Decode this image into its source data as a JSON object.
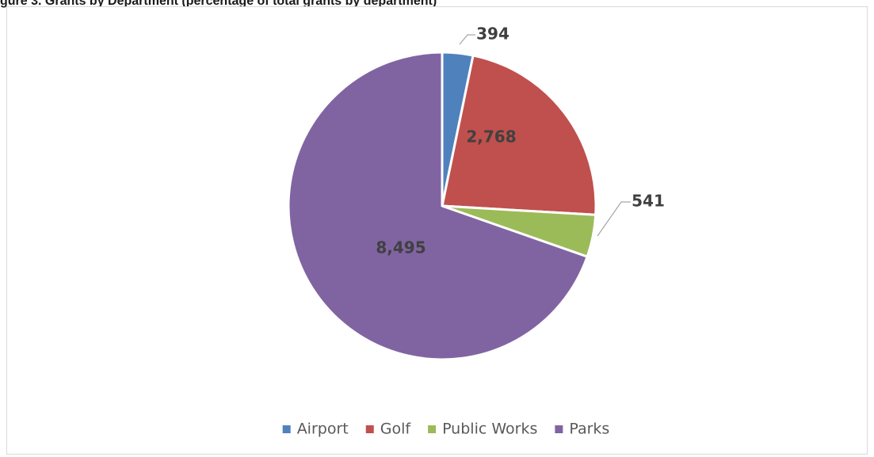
{
  "header": {
    "title_visible_fragment": "gure 3. Grants by Department (percentage of total grants by department)"
  },
  "chart_data": {
    "type": "pie",
    "title": "",
    "categories": [
      "Airport",
      "Golf",
      "Public Works",
      "Parks"
    ],
    "values": [
      394,
      2768,
      541,
      8495
    ],
    "value_labels": [
      "394",
      "2,768",
      "541",
      "8,495"
    ],
    "colors": {
      "Airport": "#4f81bd",
      "Golf": "#c0504d",
      "Public Works": "#9bbb59",
      "Parks": "#8064a2"
    },
    "start_angle": "12 o'clock",
    "direction": "clockwise",
    "legend": "bottom",
    "legend_entries": [
      "Airport",
      "Golf",
      "Public Works",
      "Parks"
    ]
  }
}
